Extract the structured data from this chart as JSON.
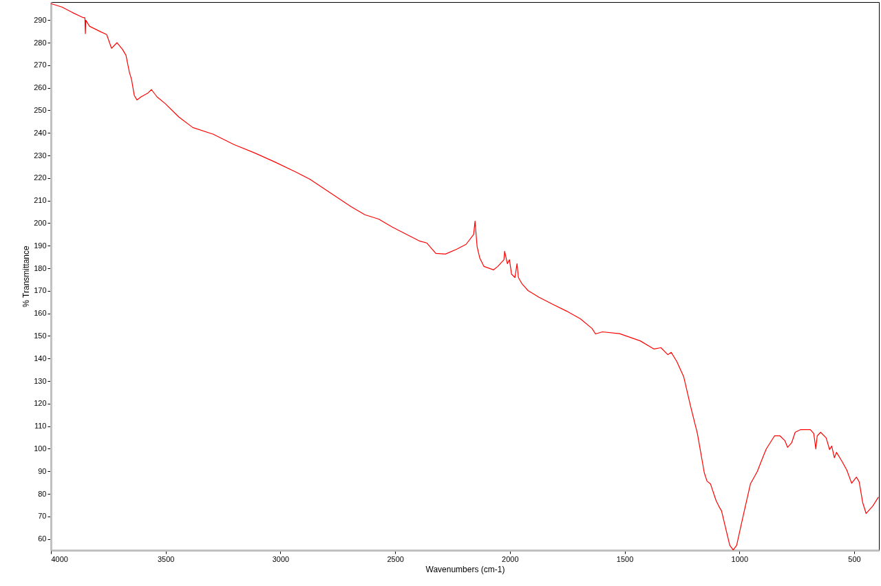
{
  "chart_data": {
    "type": "line",
    "xlabel": "Wavenumbers (cm-1)",
    "ylabel": "% Transmittance",
    "xlim": [
      4000,
      392
    ],
    "ylim": [
      55,
      298
    ],
    "xticks": [
      4000,
      3500,
      3000,
      2500,
      2000,
      1500,
      1000,
      500
    ],
    "yticks": [
      60,
      70,
      80,
      90,
      100,
      110,
      120,
      130,
      140,
      150,
      160,
      170,
      180,
      190,
      200,
      210,
      220,
      230,
      240,
      250,
      260,
      270,
      280,
      290
    ],
    "grid": false,
    "marker": "none",
    "line_style": "solid",
    "series": [
      {
        "color": "#ff0000",
        "x": [
          4000,
          3952,
          3907,
          3862,
          3852,
          3850,
          3848,
          3832,
          3787,
          3757,
          3736,
          3712,
          3688,
          3673,
          3658,
          3649,
          3637,
          3625,
          3607,
          3577,
          3562,
          3538,
          3502,
          3442,
          3382,
          3292,
          3202,
          3112,
          3022,
          2932,
          2872,
          2782,
          2692,
          2632,
          2572,
          2512,
          2452,
          2392,
          2362,
          2323,
          2281,
          2233,
          2191,
          2158,
          2152,
          2143,
          2131,
          2113,
          2071,
          2053,
          2026,
          2023,
          2011,
          2002,
          1993,
          1978,
          1969,
          1963,
          1948,
          1921,
          1873,
          1813,
          1753,
          1693,
          1642,
          1627,
          1597,
          1522,
          1432,
          1372,
          1342,
          1312,
          1297,
          1273,
          1243,
          1213,
          1183,
          1153,
          1141,
          1126,
          1102,
          1087,
          1078,
          1063,
          1042,
          1027,
          1012,
          982,
          952,
          922,
          901,
          883,
          847,
          823,
          802,
          790,
          772,
          757,
          733,
          691,
          676,
          667,
          661,
          646,
          622,
          607,
          598,
          586,
          577,
          553,
          532,
          511,
          490,
          478,
          463,
          448,
          418,
          394
        ],
        "values": [
          297.3,
          295.8,
          293.4,
          291.2,
          291,
          284,
          290,
          287.3,
          285,
          283.6,
          277.5,
          280,
          277,
          274.4,
          266.8,
          263.8,
          256.7,
          254.6,
          256,
          257.7,
          259.2,
          256,
          253,
          247,
          242.4,
          239.4,
          234.8,
          231.1,
          227,
          222.6,
          219.5,
          213.4,
          207.3,
          203.7,
          201.8,
          198.2,
          195.1,
          192,
          191.2,
          186.6,
          186.3,
          188.4,
          190.6,
          195,
          200.9,
          189.6,
          184.4,
          180.8,
          179.3,
          180.8,
          183.8,
          187.5,
          182,
          183.8,
          177.4,
          175.9,
          182,
          175.9,
          173.2,
          170.1,
          167.1,
          164,
          161,
          157.6,
          153.3,
          150.9,
          151.8,
          151,
          147.8,
          144.2,
          144.8,
          141.7,
          142.7,
          138.7,
          132,
          118.9,
          106.7,
          89.3,
          85.6,
          84.4,
          77.1,
          74,
          72.5,
          66.1,
          57.2,
          55.1,
          57.2,
          71,
          84.4,
          89.9,
          95.4,
          99.9,
          105.7,
          105.7,
          103.6,
          100.6,
          102.7,
          107.3,
          108.5,
          108.5,
          106.7,
          99.9,
          105.7,
          107.3,
          104.8,
          99.6,
          101.2,
          96,
          98.4,
          94.4,
          90.5,
          84.7,
          87.4,
          85.3,
          76.2,
          71.3,
          74.7,
          78.6
        ]
      }
    ]
  }
}
